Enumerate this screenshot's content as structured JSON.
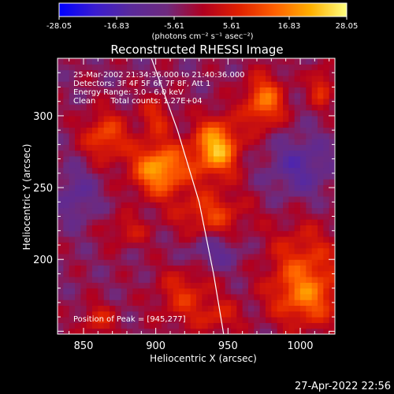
{
  "chart_data": {
    "type": "heatmap",
    "title": "Reconstructed RHESSI Image",
    "xlabel": "Heliocentric X (arcsec)",
    "ylabel": "Heliocentric Y (arcsec)",
    "xlim": [
      832,
      1024
    ],
    "ylim": [
      148,
      340
    ],
    "xticks": [
      850,
      900,
      950,
      1000
    ],
    "yticks": [
      200,
      250,
      300
    ],
    "colorbar": {
      "units": "(photons cm⁻² s⁻¹ asec⁻²)",
      "range": [
        -28.05,
        28.05
      ],
      "ticks": [
        "-28.05",
        "-16.83",
        "-5.61",
        "5.61",
        "16.83",
        "28.05"
      ],
      "colormap": [
        "#0000ff",
        "#3a1cd0",
        "#5a2a9a",
        "#6e2a7e",
        "#b00020",
        "#e02000",
        "#ff6000",
        "#ffb000",
        "#ffff80"
      ]
    },
    "annotations": [
      "25-Mar-2002 21:34:36.000 to 21:40:36.000",
      "Detectors: 3F 4F 5F 6F 7F 8F, Att 1",
      "Energy Range: 3.0 - 6.0 keV",
      "Clean      Total counts: 1.27E+04"
    ],
    "peak": {
      "label": "Position of Peak = [945,277]",
      "x": 945,
      "y": 277
    },
    "limb": {
      "x": [
        897,
        915,
        930,
        940,
        947
      ],
      "y": [
        340,
        290,
        240,
        190,
        148
      ]
    },
    "sources": [
      {
        "x": 942,
        "y": 278,
        "sx": 11,
        "sy": 14,
        "amp": 26
      },
      {
        "x": 903,
        "y": 263,
        "sx": 14,
        "sy": 13,
        "amp": 24
      },
      {
        "x": 975,
        "y": 310,
        "sx": 10,
        "sy": 13,
        "amp": 19
      },
      {
        "x": 865,
        "y": 286,
        "sx": 11,
        "sy": 12,
        "amp": 15
      },
      {
        "x": 938,
        "y": 232,
        "sx": 17,
        "sy": 11,
        "amp": 13
      },
      {
        "x": 1002,
        "y": 198,
        "sx": 18,
        "sy": 20,
        "amp": 12
      },
      {
        "x": 1004,
        "y": 172,
        "sx": 17,
        "sy": 14,
        "amp": 14
      },
      {
        "x": 1015,
        "y": 320,
        "sx": 6,
        "sy": 10,
        "amp": 12
      },
      {
        "x": 920,
        "y": 175,
        "sx": 14,
        "sy": 15,
        "amp": 11
      },
      {
        "x": 860,
        "y": 158,
        "sx": 9,
        "sy": 8,
        "amp": 10
      },
      {
        "x": 945,
        "y": 160,
        "sx": 10,
        "sy": 8,
        "amp": 9
      },
      {
        "x": 880,
        "y": 220,
        "sx": 11,
        "sy": 8,
        "amp": 8
      },
      {
        "x": 900,
        "y": 300,
        "sx": 8,
        "sy": 10,
        "amp": 10
      },
      {
        "x": 1000,
        "y": 265,
        "sx": 15,
        "sy": 15,
        "amp": -10
      },
      {
        "x": 845,
        "y": 245,
        "sx": 10,
        "sy": 14,
        "amp": -8
      },
      {
        "x": 940,
        "y": 205,
        "sx": 14,
        "sy": 8,
        "amp": -8
      }
    ],
    "background": -4
  },
  "footer": {
    "timestamp": "27-Apr-2022 22:56"
  }
}
